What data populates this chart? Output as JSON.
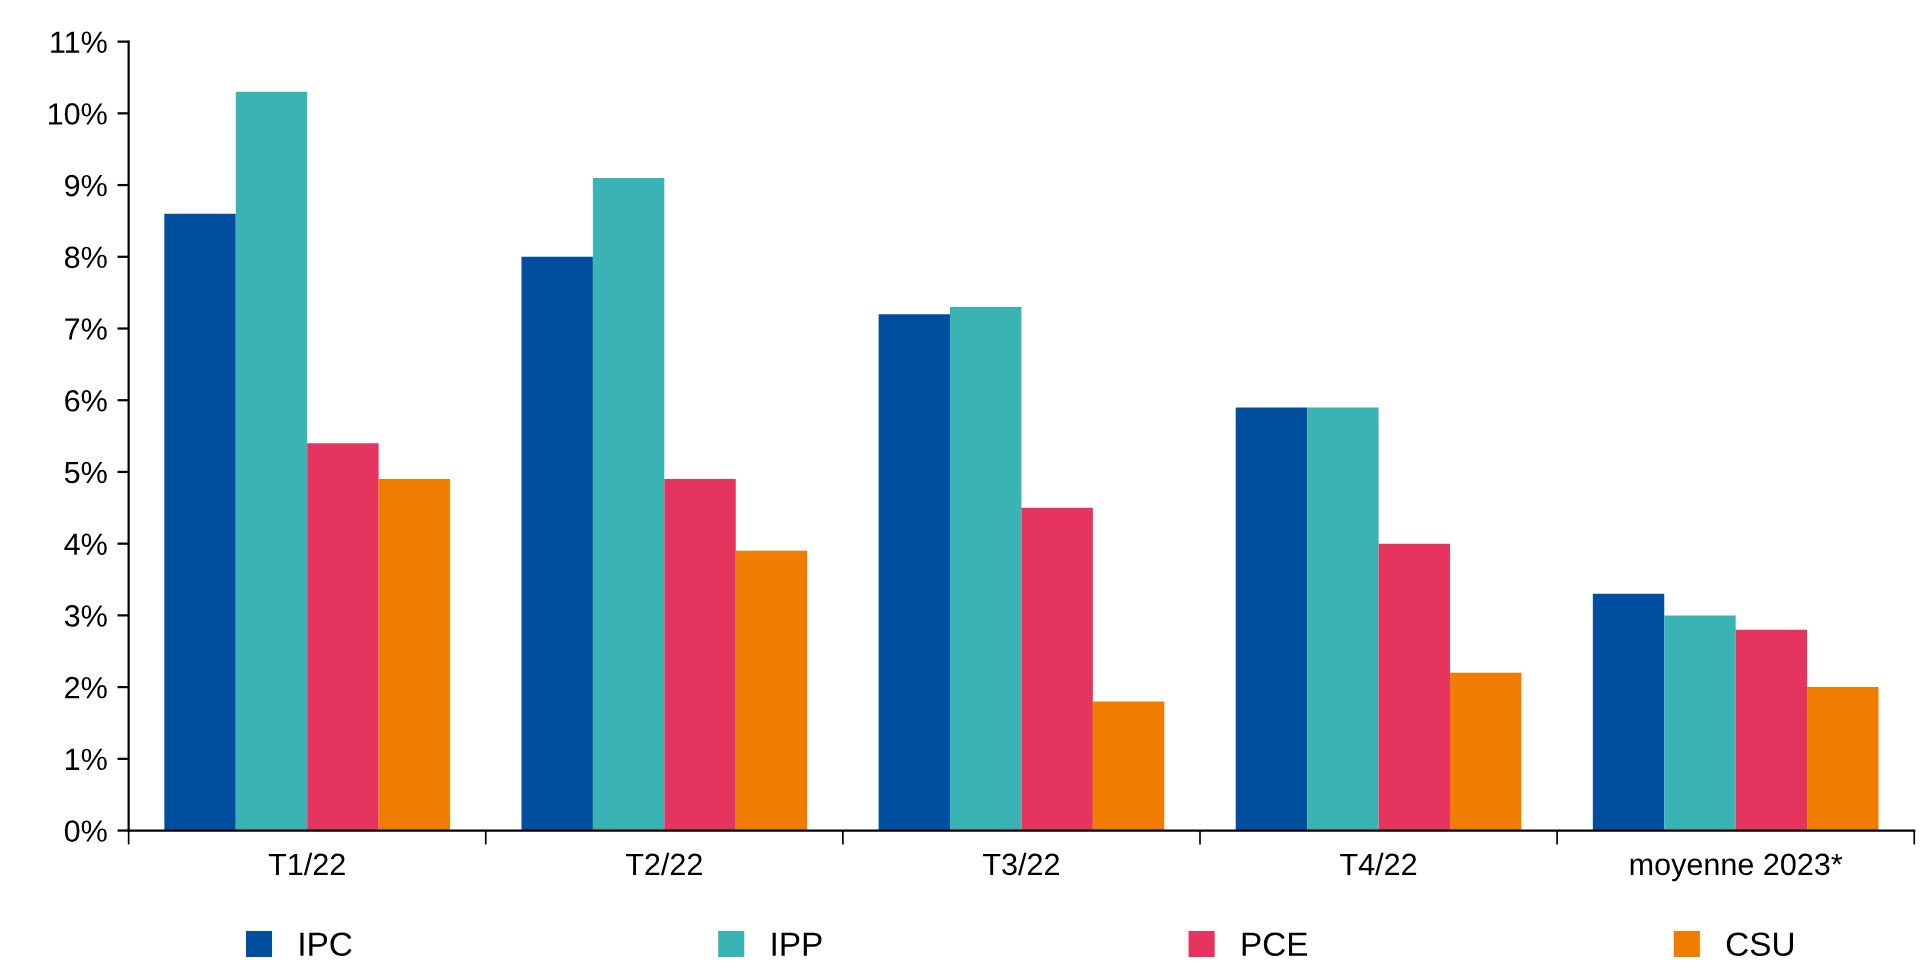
{
  "chart_data": {
    "type": "bar",
    "categories": [
      "T1/22",
      "T2/22",
      "T3/22",
      "T4/22",
      "moyenne 2023*"
    ],
    "series": [
      {
        "name": "IPC",
        "color": "#004f9e",
        "values": [
          8.6,
          8.0,
          7.2,
          5.9,
          3.3
        ]
      },
      {
        "name": "IPP",
        "color": "#3ab3b5",
        "values": [
          10.3,
          9.1,
          7.3,
          5.9,
          3.0
        ]
      },
      {
        "name": "PCE",
        "color": "#e5345e",
        "values": [
          5.4,
          4.9,
          4.5,
          4.0,
          2.8
        ]
      },
      {
        "name": "CSU",
        "color": "#f07d00",
        "values": [
          4.9,
          3.9,
          1.8,
          2.2,
          2.0
        ]
      }
    ],
    "ylim": [
      0,
      11
    ],
    "yticks": [
      {
        "value": 0,
        "label": "0%"
      },
      {
        "value": 1,
        "label": "1%"
      },
      {
        "value": 2,
        "label": "2%"
      },
      {
        "value": 3,
        "label": "3%"
      },
      {
        "value": 4,
        "label": "4%"
      },
      {
        "value": 5,
        "label": "5%"
      },
      {
        "value": 6,
        "label": "6%"
      },
      {
        "value": 7,
        "label": "7%"
      },
      {
        "value": 8,
        "label": "8%"
      },
      {
        "value": 9,
        "label": "9%"
      },
      {
        "value": 10,
        "label": "10%"
      },
      {
        "value": 11,
        "label": "11%"
      }
    ],
    "grid": false,
    "legend": "bottom"
  }
}
